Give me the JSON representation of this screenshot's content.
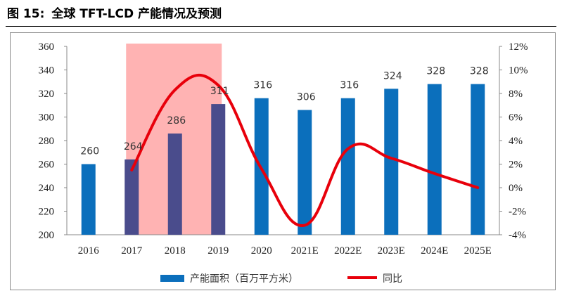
{
  "figure": {
    "label": "图 15:",
    "title": "全球 TFT-LCD 产能情况及预测"
  },
  "chart_data": {
    "type": "bar+line",
    "categories": [
      "2016",
      "2017",
      "2018",
      "2019",
      "2020",
      "2021E",
      "2022E",
      "2023E",
      "2024E",
      "2025E"
    ],
    "series": [
      {
        "name": "产能面积（百万平方米）",
        "type": "bar",
        "axis": "left",
        "values": [
          260,
          264,
          286,
          311,
          316,
          306,
          316,
          324,
          328,
          328
        ],
        "labels": [
          "260",
          "264",
          "286",
          "311",
          "316",
          "306",
          "316",
          "324",
          "328",
          "328"
        ],
        "color": "#0B6FBC",
        "dark_color": "#4A4C8C"
      },
      {
        "name": "同比",
        "type": "line",
        "axis": "right",
        "values": [
          null,
          1.5,
          8.3,
          8.7,
          1.6,
          -3.2,
          3.3,
          2.5,
          1.2,
          0.0
        ],
        "color": "#E8000B"
      }
    ],
    "y_left": {
      "min": 200,
      "max": 360,
      "ticks": [
        "200",
        "220",
        "240",
        "260",
        "280",
        "300",
        "320",
        "340",
        "360"
      ]
    },
    "y_right": {
      "min": -4,
      "max": 12,
      "ticks": [
        "-4%",
        "-2%",
        "0%",
        "2%",
        "4%",
        "6%",
        "8%",
        "10%",
        "12%"
      ]
    },
    "highlight": {
      "from": "2017",
      "to": "2019",
      "color": "#FFB3B3"
    }
  }
}
